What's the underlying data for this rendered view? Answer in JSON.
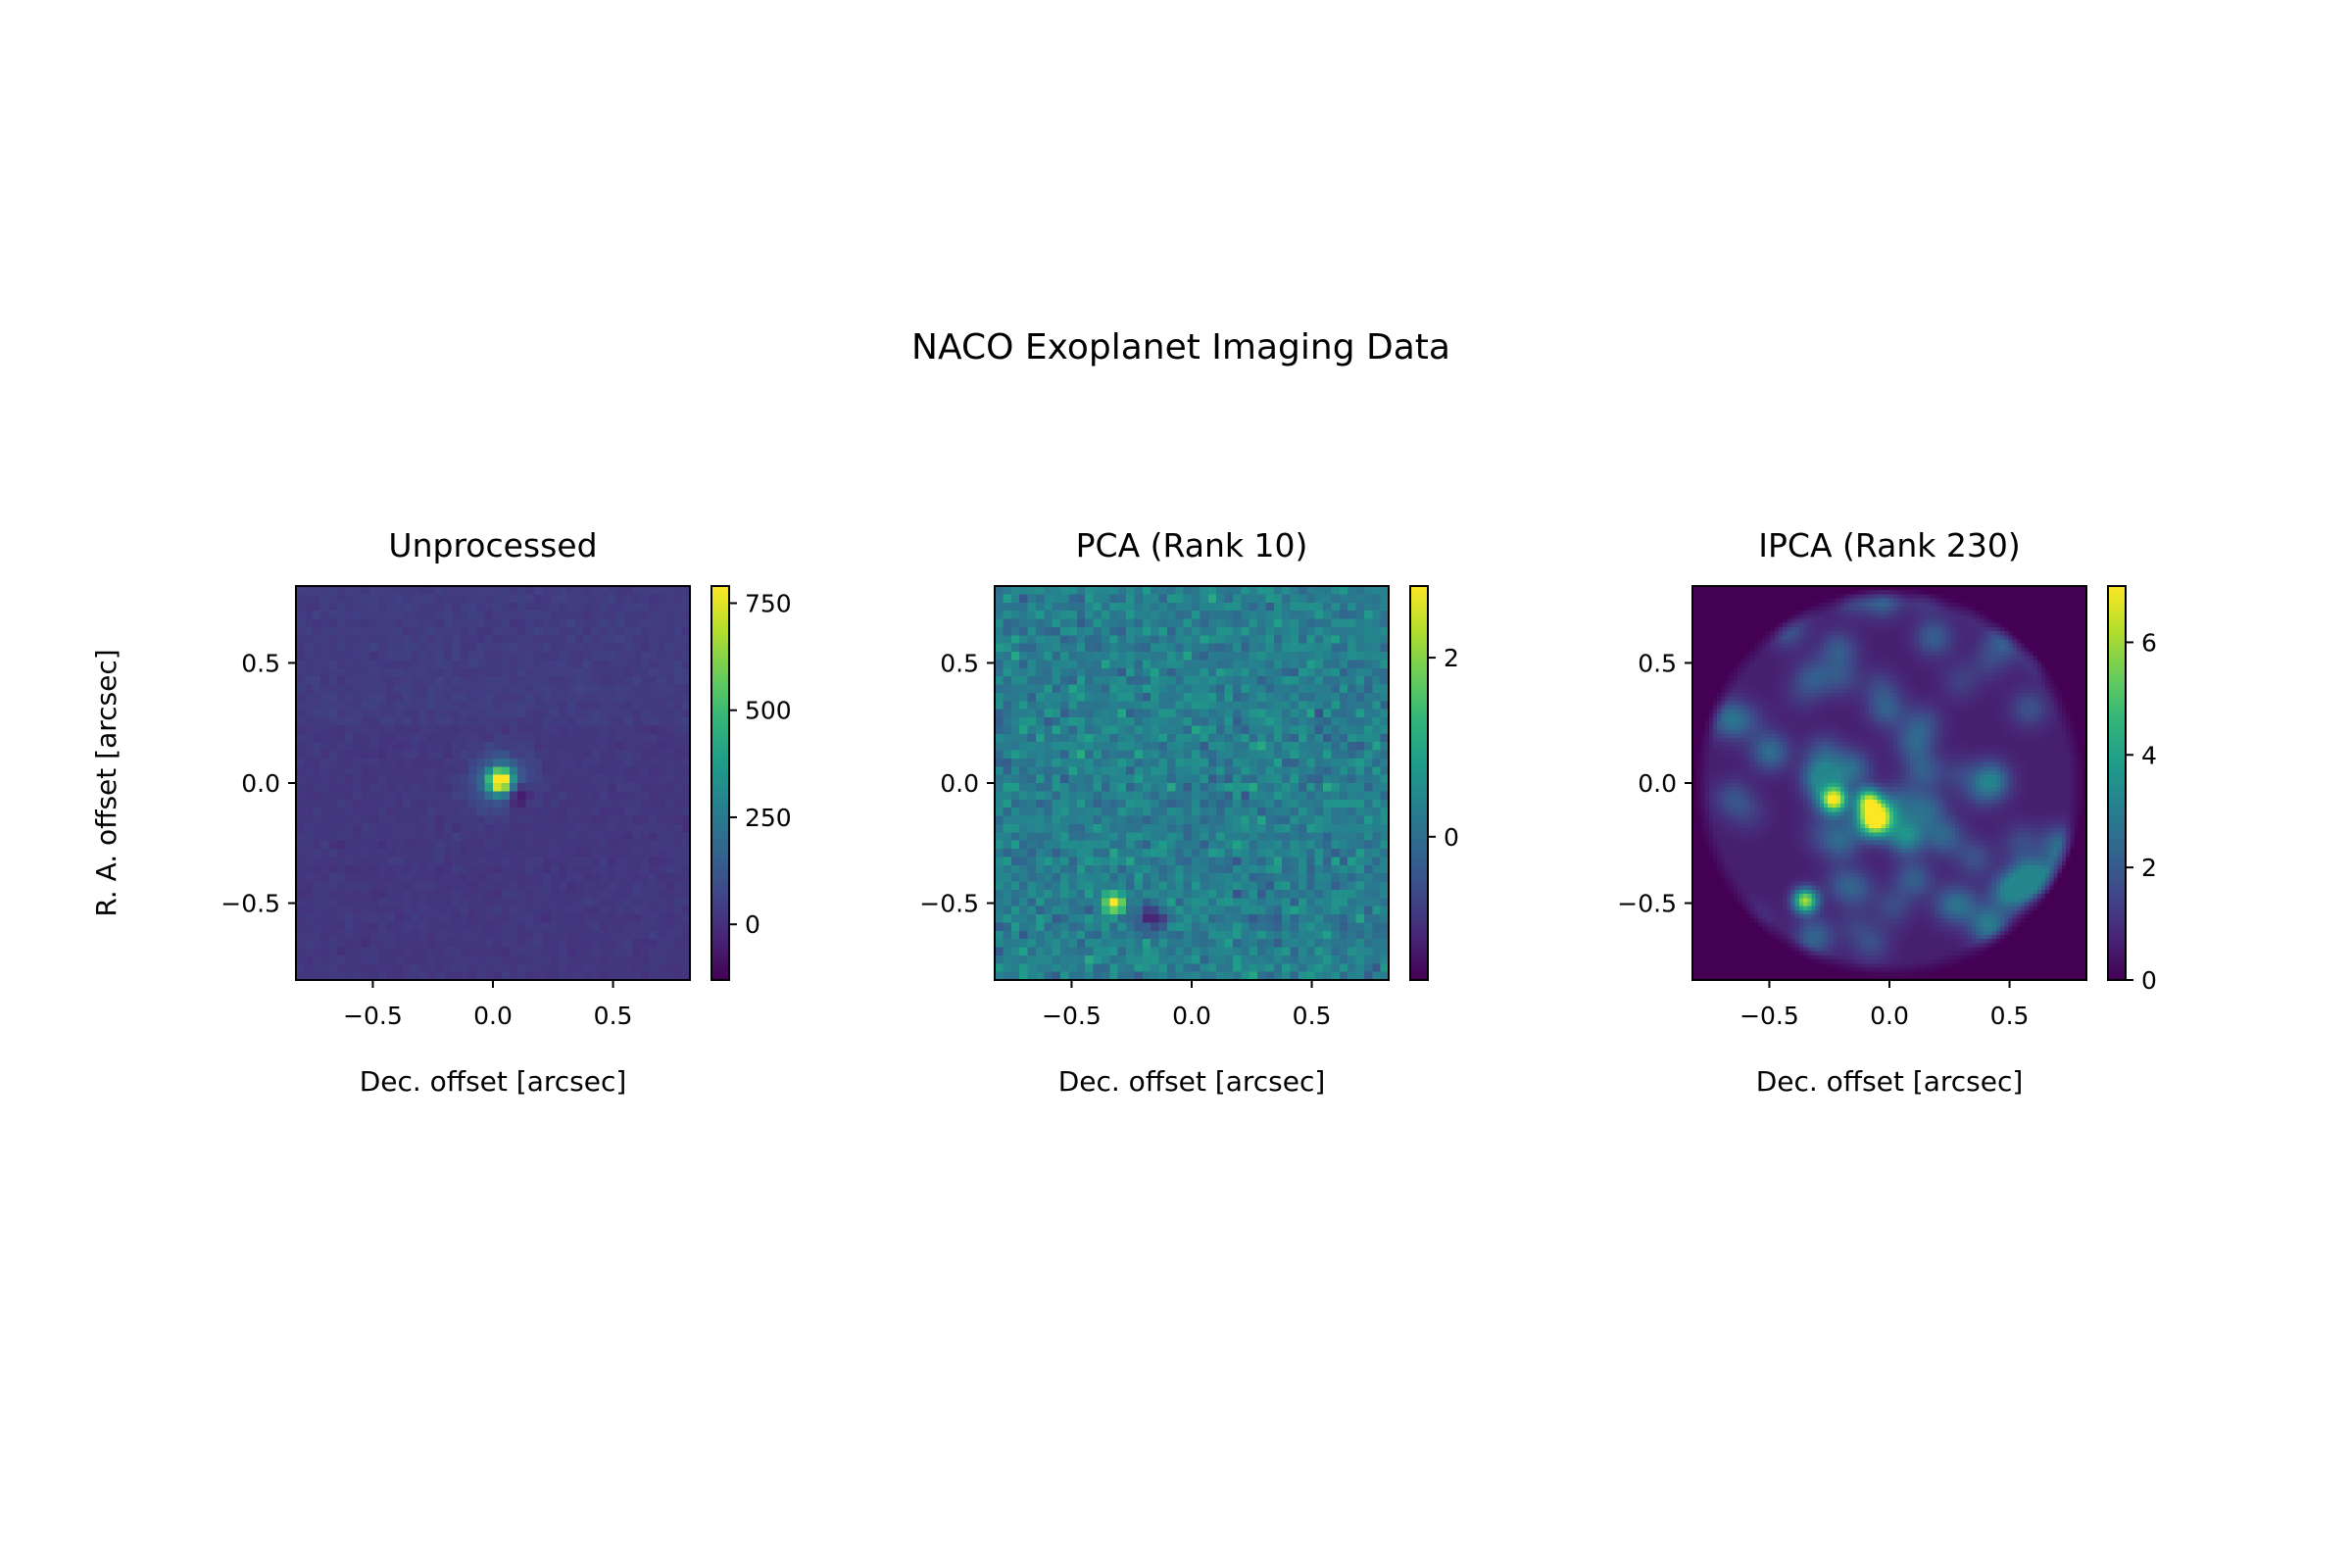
{
  "figure": {
    "title": "NACO Exoplanet Imaging Data"
  },
  "chart_data": [
    {
      "type": "heatmap",
      "title": "Unprocessed",
      "xlabel": "Dec. offset [arcsec]",
      "ylabel": "R. A. offset [arcsec]",
      "xlim": [
        -0.82,
        0.82
      ],
      "ylim": [
        -0.82,
        0.82
      ],
      "xticks": [
        -0.5,
        0.0,
        0.5
      ],
      "xtick_labels": [
        "−0.5",
        "0.0",
        "0.5"
      ],
      "yticks": [
        -0.5,
        0.0,
        0.5
      ],
      "ytick_labels": [
        "−0.5",
        "0.0",
        "0.5"
      ],
      "colormap": "viridis",
      "colorbar": {
        "range": [
          -130,
          790
        ],
        "ticks": [
          0,
          250,
          500,
          750
        ],
        "tick_labels": [
          "0",
          "250",
          "500",
          "750"
        ]
      },
      "features": [
        {
          "kind": "bright-source",
          "x": 0.03,
          "y": 0.01,
          "peak": 790
        },
        {
          "kind": "negative-lobe",
          "x": 0.1,
          "y": -0.05,
          "value": -130
        },
        {
          "kind": "horizontal-band",
          "y": 0.23
        }
      ]
    },
    {
      "type": "heatmap",
      "title": "PCA (Rank 10)",
      "xlabel": "Dec. offset [arcsec]",
      "ylabel": "",
      "xlim": [
        -0.82,
        0.82
      ],
      "ylim": [
        -0.82,
        0.82
      ],
      "xticks": [
        -0.5,
        0.0,
        0.5
      ],
      "xtick_labels": [
        "−0.5",
        "0.0",
        "0.5"
      ],
      "yticks": [
        -0.5,
        0.0,
        0.5
      ],
      "ytick_labels": [
        "−0.5",
        "0.0",
        "0.5"
      ],
      "colormap": "viridis",
      "colorbar": {
        "range": [
          -1.6,
          2.8
        ],
        "ticks": [
          0,
          2
        ],
        "tick_labels": [
          "0",
          "2"
        ]
      },
      "features": [
        {
          "kind": "bright-source",
          "x": -0.32,
          "y": -0.5,
          "peak": 2.8
        },
        {
          "kind": "negative-lobe",
          "x": -0.18,
          "y": -0.56,
          "value": -1.5
        }
      ]
    },
    {
      "type": "heatmap",
      "title": "IPCA (Rank 230)",
      "xlabel": "Dec. offset [arcsec]",
      "ylabel": "",
      "xlim": [
        -0.82,
        0.82
      ],
      "ylim": [
        -0.82,
        0.82
      ],
      "xticks": [
        -0.5,
        0.0,
        0.5
      ],
      "xtick_labels": [
        "−0.5",
        "0.0",
        "0.5"
      ],
      "yticks": [
        -0.5,
        0.0,
        0.5
      ],
      "ytick_labels": [
        "−0.5",
        "0.0",
        "0.5"
      ],
      "colormap": "viridis",
      "colorbar": {
        "range": [
          0,
          7
        ],
        "ticks": [
          0,
          2,
          4,
          6
        ],
        "tick_labels": [
          "0",
          "2",
          "4",
          "6"
        ]
      },
      "features": [
        {
          "kind": "bright-source",
          "x": -0.06,
          "y": -0.15,
          "peak": 7
        },
        {
          "kind": "source",
          "x": -0.35,
          "y": -0.49,
          "peak": 5.5
        },
        {
          "kind": "source",
          "x": -0.23,
          "y": -0.07,
          "peak": 4.5
        },
        {
          "kind": "disk-mask",
          "radius": 0.78
        }
      ]
    }
  ]
}
